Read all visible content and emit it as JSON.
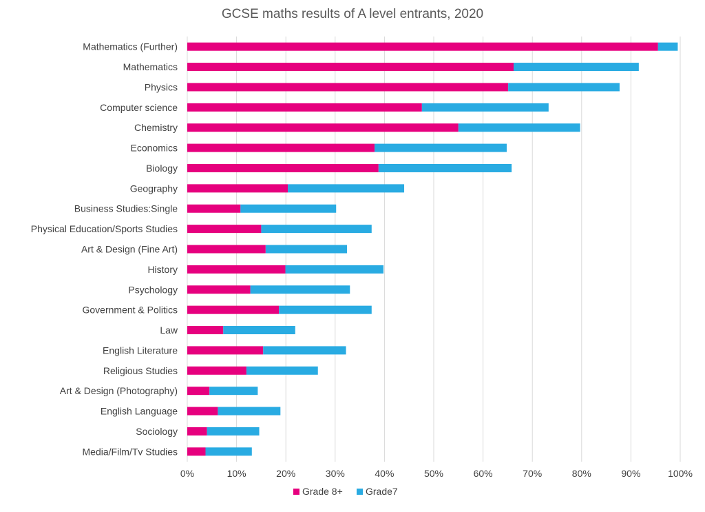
{
  "chart_data": {
    "type": "bar",
    "orientation": "horizontal",
    "stacked": true,
    "title": "GCSE maths results of A level entrants, 2020",
    "categories": [
      "Mathematics (Further)",
      "Mathematics",
      "Physics",
      "Computer science",
      "Chemistry",
      "Economics",
      "Biology",
      "Geography",
      "Business Studies:Single",
      "Physical Education/Sports Studies",
      "Art & Design (Fine Art)",
      "History",
      "Psychology",
      "Government & Politics",
      "Law",
      "English Literature",
      "Religious Studies",
      "Art & Design (Photography)",
      "English Language",
      "Sociology",
      "Media/Film/Tv Studies"
    ],
    "series": [
      {
        "name": "Grade 8+",
        "color": "#e6007e",
        "values": [
          95.5,
          66.2,
          65.1,
          47.6,
          55.0,
          38.0,
          38.8,
          20.4,
          10.8,
          15.0,
          15.9,
          19.9,
          12.8,
          18.6,
          7.3,
          15.4,
          12.0,
          4.5,
          6.2,
          4.0,
          3.7
        ]
      },
      {
        "name": "Grade7",
        "color": "#29abe2",
        "values": [
          4.0,
          25.4,
          22.6,
          25.7,
          24.7,
          26.8,
          27.0,
          23.6,
          19.4,
          22.4,
          16.5,
          19.9,
          20.2,
          18.8,
          14.6,
          16.8,
          14.5,
          9.8,
          12.7,
          10.6,
          9.4
        ]
      }
    ],
    "xlim": [
      0,
      100
    ],
    "xticks": [
      0,
      10,
      20,
      30,
      40,
      50,
      60,
      70,
      80,
      90,
      100
    ],
    "tick_suffix": "%",
    "xlabel": "",
    "ylabel": "",
    "grid": "vertical",
    "legend_position": "bottom-center"
  }
}
